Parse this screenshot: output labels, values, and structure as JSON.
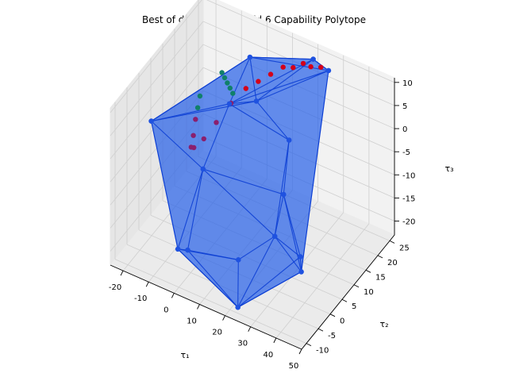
{
  "chart_data": {
    "type": "scatter",
    "title": "Best of dimensional valid 6 Capability Polytope",
    "xlabel": "τ₁",
    "ylabel": "τ₂",
    "zlabel": "τ₃",
    "xlim": [
      -25,
      50
    ],
    "ylim": [
      -12,
      27
    ],
    "zlim": [
      -23,
      11
    ],
    "x_ticks": [
      -20,
      -10,
      0,
      10,
      20,
      30,
      40,
      50
    ],
    "y_ticks": [
      -10,
      -5,
      0,
      5,
      10,
      15,
      20,
      25
    ],
    "z_ticks": [
      -20,
      -15,
      -10,
      -5,
      0,
      5,
      10
    ],
    "grid": true,
    "colors": {
      "polytope_face": "#2a62e8",
      "polytope_edge": "#0d3fd4",
      "vertex": "#1f52e0",
      "trajectory_red": "#d4001a",
      "trajectory_purple": "#8a1f6e",
      "trajectory_green": "#10806a"
    },
    "vertices": [
      [
        -22,
        2,
        0
      ],
      [
        -2,
        22,
        6
      ],
      [
        20,
        25,
        9
      ],
      [
        26,
        25,
        8
      ],
      [
        32,
        2,
        9
      ],
      [
        48,
        -10,
        -8
      ],
      [
        42,
        -4,
        -10
      ],
      [
        25,
        -12,
        -20
      ],
      [
        -4,
        -2,
        -21
      ],
      [
        -6,
        -4,
        -20
      ],
      [
        14,
        0,
        -20
      ],
      [
        3,
        8,
        6
      ],
      [
        8,
        14,
        4
      ],
      [
        2,
        -2,
        -2
      ],
      [
        28,
        4,
        -5
      ],
      [
        32,
        -4,
        -8
      ]
    ],
    "trajectory": [
      [
        -13,
        22,
        0
      ],
      [
        -11,
        21,
        0
      ],
      [
        -9,
        20,
        0
      ],
      [
        -7,
        19,
        0
      ],
      [
        -5,
        18,
        0
      ],
      [
        -16,
        16,
        -2
      ],
      [
        -15,
        14,
        -3
      ],
      [
        -14,
        12,
        -4
      ],
      [
        -13,
        10,
        -6
      ],
      [
        -12,
        8,
        -7
      ],
      [
        -10,
        7,
        -6
      ],
      [
        -7,
        8,
        -4
      ],
      [
        -4,
        10,
        -1
      ],
      [
        -1,
        13,
        2
      ],
      [
        2,
        16,
        4
      ],
      [
        5,
        18,
        5
      ],
      [
        8,
        20,
        6
      ],
      [
        11,
        22,
        7
      ],
      [
        14,
        23,
        7
      ],
      [
        17,
        24,
        8
      ],
      [
        20,
        24,
        8
      ],
      [
        23,
        25,
        8
      ]
    ]
  }
}
